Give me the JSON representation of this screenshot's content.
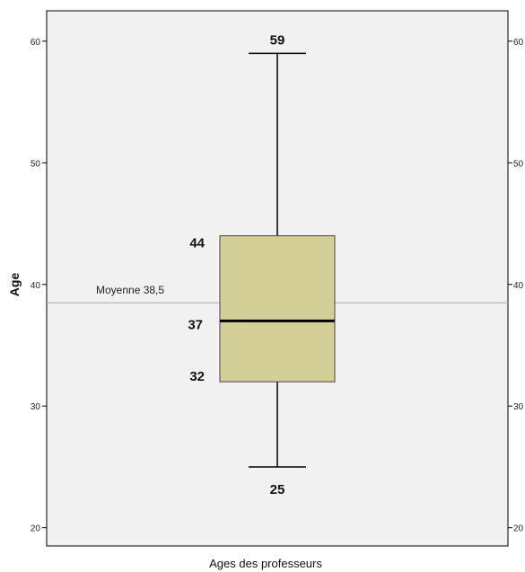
{
  "chart_data": {
    "type": "box",
    "title": "",
    "xlabel": "Ages des professeurs",
    "ylabel": "Age",
    "ylim": [
      18.5,
      62.5
    ],
    "yticks": [
      20,
      30,
      40,
      50,
      60
    ],
    "grid": false,
    "box": {
      "min": 25,
      "q1": 32,
      "median": 37,
      "q3": 44,
      "max": 59,
      "labels": {
        "min": "25",
        "q1": "32",
        "median": "37",
        "q3": "44",
        "max": "59"
      }
    },
    "mean_line": {
      "value": 38.5,
      "label": "Moyenne 38,5"
    }
  },
  "colors": {
    "plot_background": "#f0f1f0",
    "box_fill": "#d4cf97",
    "mean_line": "#a8a8a8",
    "axis": "#000000"
  }
}
